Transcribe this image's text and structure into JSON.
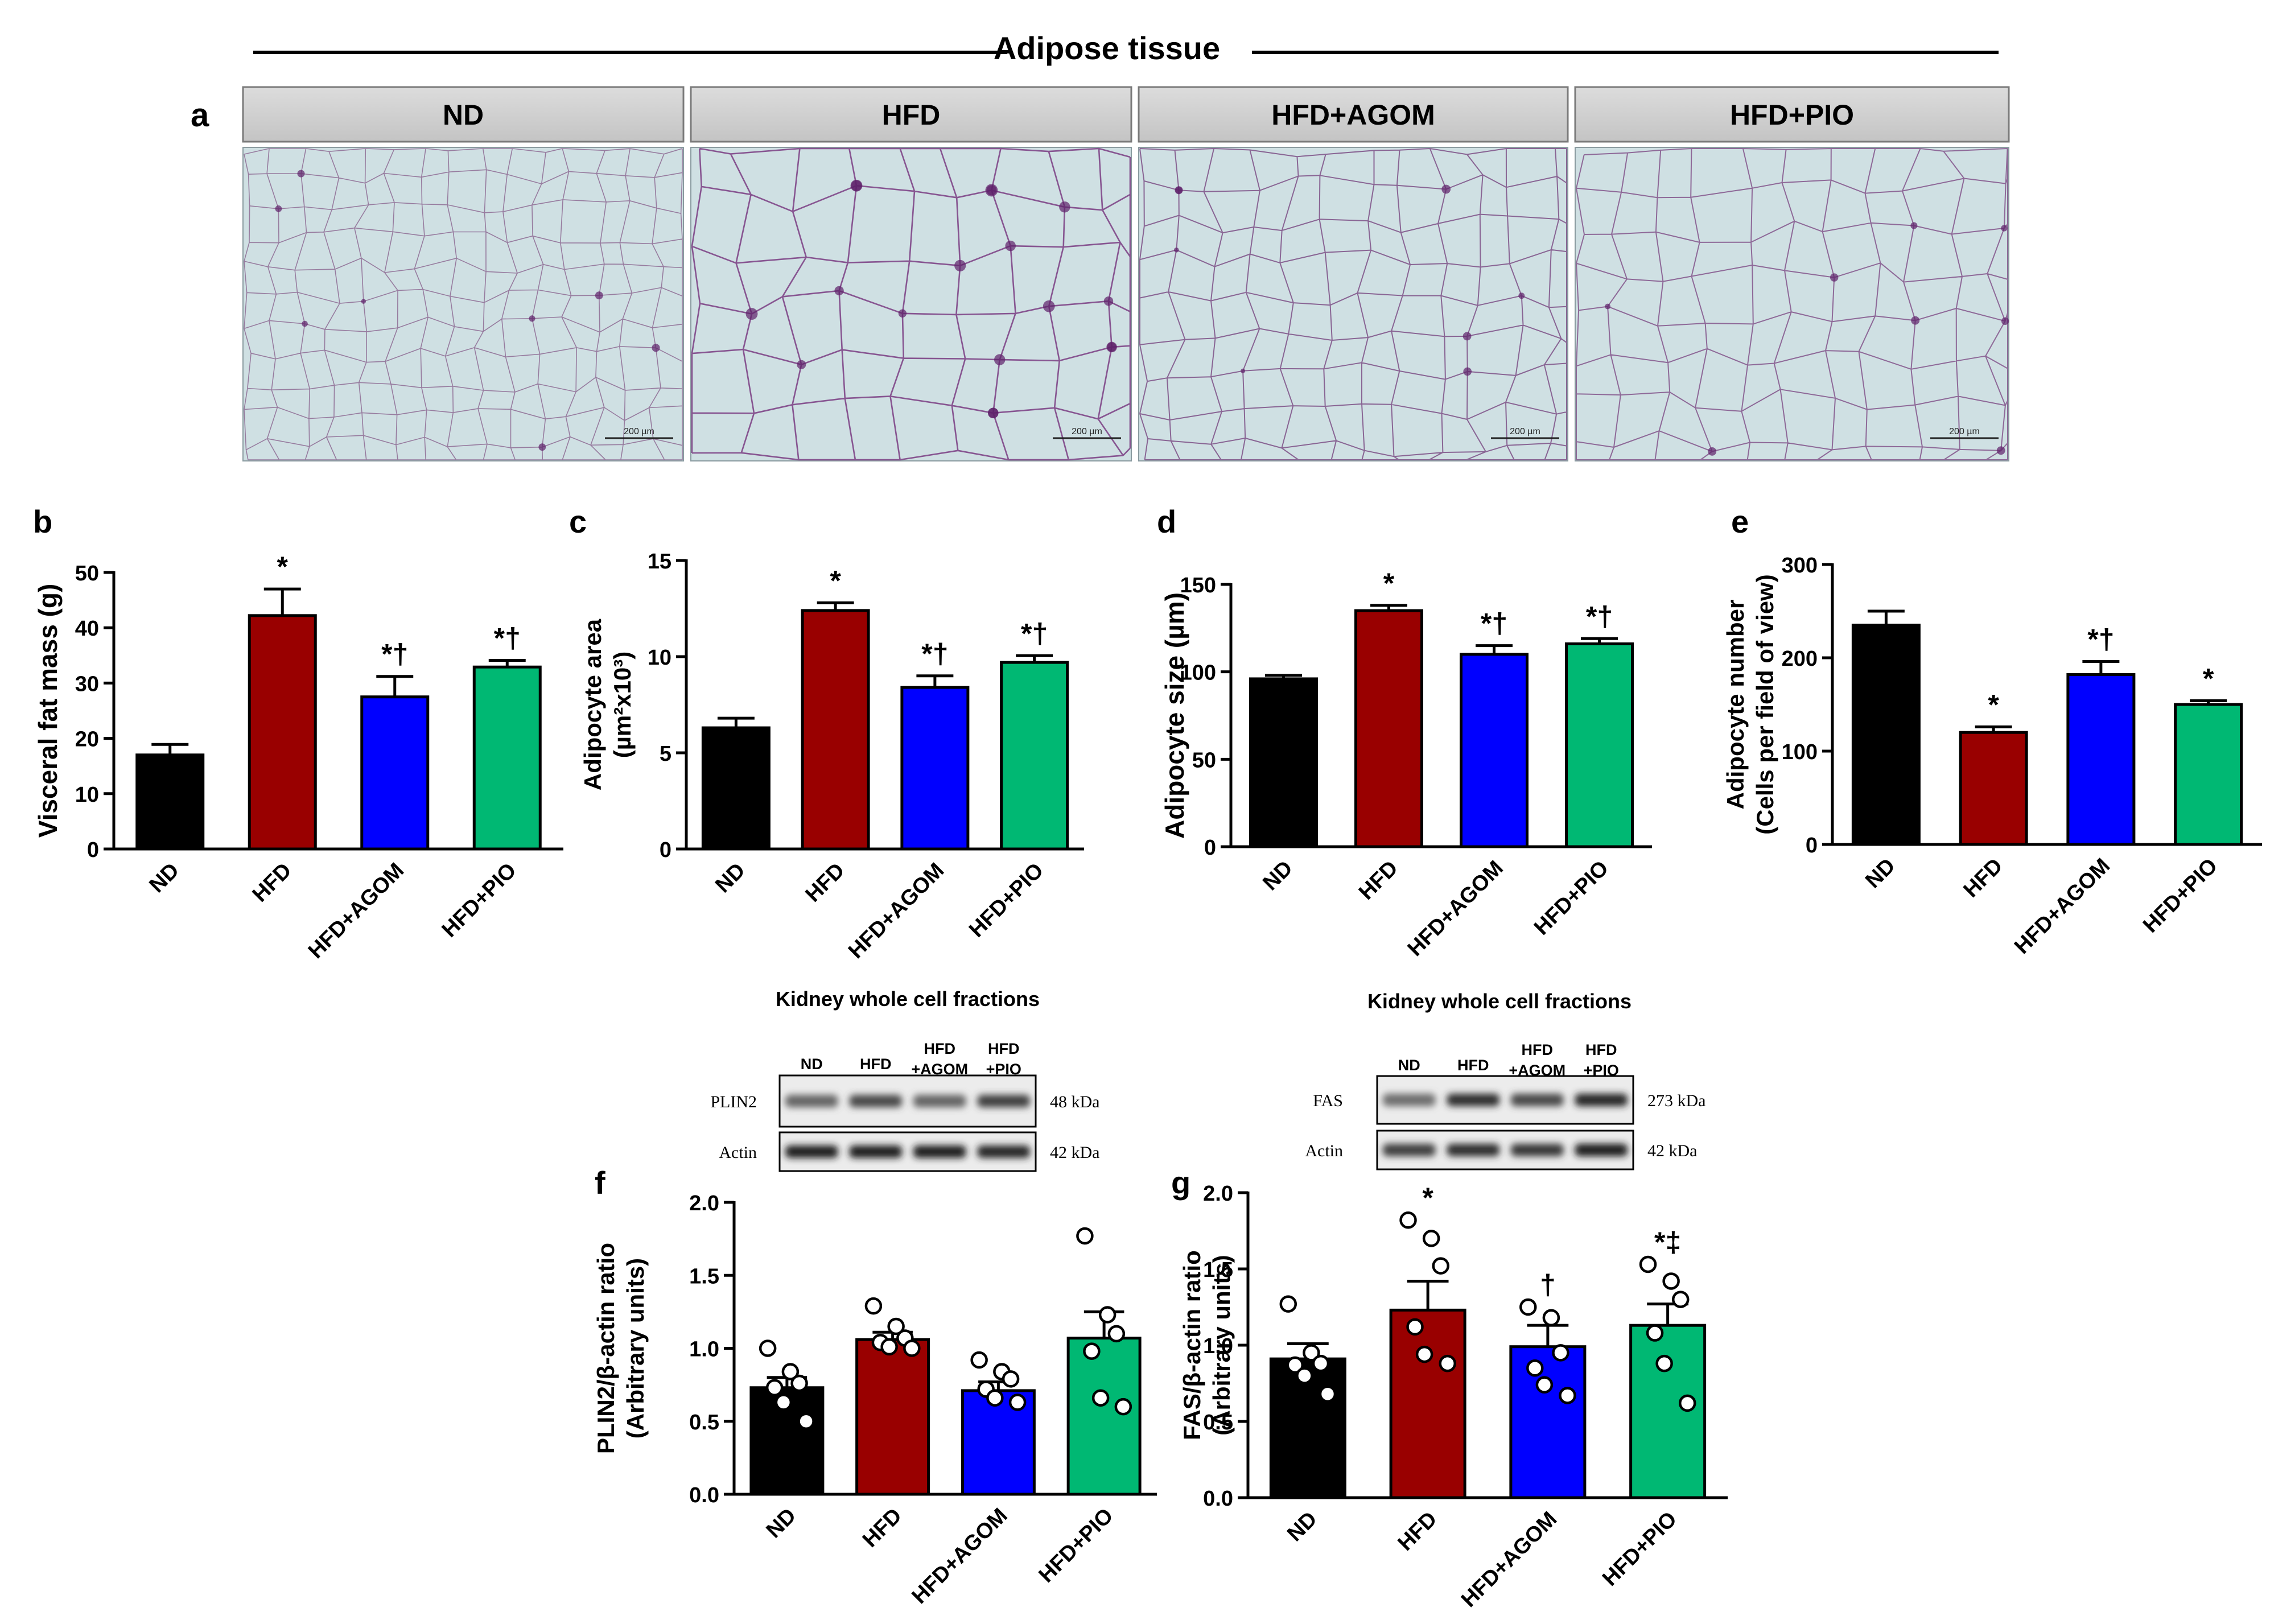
{
  "page": {
    "title": "Adipose tissue"
  },
  "panel_a": {
    "letter": "a",
    "headers": [
      "ND",
      "HFD",
      "HFD+AGOM",
      "HFD+PIO"
    ],
    "scale_bar_label": "200 µm"
  },
  "chart_data": [
    {
      "type": "bar",
      "letter": "b",
      "categories": [
        "ND",
        "HFD",
        "HFD+AGOM",
        "HFD+PIO"
      ],
      "values": [
        17,
        42.2,
        27.5,
        32.9
      ],
      "errors": [
        1.9,
        4.8,
        3.7,
        1.2
      ],
      "sig": [
        "",
        "*",
        "*†",
        "*†"
      ],
      "ylabel": [
        "Visceral fat mass (g)"
      ],
      "ylim": [
        0,
        50
      ],
      "yticks": [
        0,
        10,
        20,
        30,
        40,
        50
      ],
      "ytick_labels": [
        "0",
        "10",
        "20",
        "30",
        "40",
        "50"
      ],
      "colors": [
        "#000000",
        "#990000",
        "#0000ff",
        "#00b873"
      ]
    },
    {
      "type": "bar",
      "letter": "c",
      "categories": [
        "ND",
        "HFD",
        "HFD+AGOM",
        "HFD+PIO"
      ],
      "values": [
        6.3,
        12.4,
        8.4,
        9.7
      ],
      "errors": [
        0.5,
        0.4,
        0.6,
        0.35
      ],
      "sig": [
        "",
        "*",
        "*†",
        "*†"
      ],
      "ylabel": [
        "Adipocyte area",
        "(µm²x10³)"
      ],
      "ylim": [
        0,
        15
      ],
      "yticks": [
        0,
        5,
        10,
        15
      ],
      "ytick_labels": [
        "0",
        "5",
        "10",
        "15"
      ],
      "colors": [
        "#000000",
        "#990000",
        "#0000ff",
        "#00b873"
      ]
    },
    {
      "type": "bar",
      "letter": "d",
      "categories": [
        "ND",
        "HFD",
        "HFD+AGOM",
        "HFD+PIO"
      ],
      "values": [
        96,
        135,
        110,
        116
      ],
      "errors": [
        2,
        3,
        5,
        3
      ],
      "sig": [
        "",
        "*",
        "*†",
        "*†"
      ],
      "ylabel": [
        "Adipocyte size (µm)"
      ],
      "ylim": [
        0,
        150
      ],
      "yticks": [
        0,
        50,
        100,
        150
      ],
      "ytick_labels": [
        "0",
        "50",
        "100",
        "150"
      ],
      "colors": [
        "#000000",
        "#990000",
        "#0000ff",
        "#00b873"
      ]
    },
    {
      "type": "bar",
      "letter": "e",
      "categories": [
        "ND",
        "HFD",
        "HFD+AGOM",
        "HFD+PIO"
      ],
      "values": [
        235,
        120,
        182,
        150
      ],
      "errors": [
        15,
        6,
        14,
        4
      ],
      "sig": [
        "",
        "*",
        "*†",
        "*"
      ],
      "ylabel": [
        "Adipocyte number",
        "(Cells per field of view)"
      ],
      "ylim": [
        0,
        300
      ],
      "yticks": [
        0,
        100,
        200,
        300
      ],
      "ytick_labels": [
        "0",
        "100",
        "200",
        "300"
      ],
      "colors": [
        "#000000",
        "#990000",
        "#0000ff",
        "#00b873"
      ]
    },
    {
      "type": "bar",
      "letter": "f",
      "categories": [
        "ND",
        "HFD",
        "HFD+AGOM",
        "HFD+PIO"
      ],
      "values": [
        0.73,
        1.06,
        0.71,
        1.07
      ],
      "errors": [
        0.07,
        0.05,
        0.06,
        0.18
      ],
      "points": [
        [
          1.0,
          0.84,
          0.76,
          0.73,
          0.63,
          0.5
        ],
        [
          1.29,
          1.15,
          1.07,
          1.04,
          1.01,
          1.0
        ],
        [
          0.92,
          0.84,
          0.79,
          0.72,
          0.66,
          0.63
        ],
        [
          1.77,
          1.23,
          1.1,
          0.98,
          0.66,
          0.6
        ]
      ],
      "sig": [
        "",
        "",
        "",
        ""
      ],
      "ylabel": [
        "PLIN2/β-actin ratio",
        "(Arbitrary units)"
      ],
      "ylim": [
        0,
        2
      ],
      "yticks": [
        0,
        0.5,
        1,
        1.5,
        2
      ],
      "ytick_labels": [
        "0.0",
        "0.5",
        "1.0",
        "1.5",
        "2.0"
      ],
      "colors": [
        "#000000",
        "#990000",
        "#0000ff",
        "#00b873"
      ]
    },
    {
      "type": "bar",
      "letter": "g",
      "categories": [
        "ND",
        "HFD",
        "HFD+AGOM",
        "HFD+PIO"
      ],
      "values": [
        0.91,
        1.23,
        0.99,
        1.13
      ],
      "errors": [
        0.1,
        0.19,
        0.14,
        0.14
      ],
      "points": [
        [
          1.27,
          0.95,
          0.88,
          0.87,
          0.8,
          0.68
        ],
        [
          1.82,
          1.7,
          1.52,
          1.12,
          0.94,
          0.88
        ],
        [
          1.25,
          1.18,
          0.95,
          0.85,
          0.74,
          0.67
        ],
        [
          1.53,
          1.42,
          1.3,
          1.08,
          0.88,
          0.62
        ]
      ],
      "sig": [
        "",
        "*",
        "†",
        "*‡"
      ],
      "ylabel": [
        "FAS/β-actin ratio",
        "(Arbitrary units)"
      ],
      "ylim": [
        0,
        2
      ],
      "yticks": [
        0,
        0.5,
        1,
        1.5,
        2
      ],
      "ytick_labels": [
        "0.0",
        "0.5",
        "1.0",
        "1.5",
        "2.0"
      ],
      "colors": [
        "#000000",
        "#990000",
        "#0000ff",
        "#00b873"
      ]
    }
  ],
  "blots": [
    {
      "title": "Kidney whole cell fractions",
      "lanes": [
        [
          "ND"
        ],
        [
          "HFD"
        ],
        [
          "HFD",
          "+AGOM"
        ],
        [
          "HFD",
          "+PIO"
        ]
      ],
      "rows": [
        {
          "protein": "PLIN2",
          "kda": "48 kDa",
          "intensity": [
            0.55,
            0.7,
            0.55,
            0.75
          ]
        },
        {
          "protein": "Actin",
          "kda": "42 kDa",
          "intensity": [
            0.95,
            0.95,
            0.95,
            0.9
          ]
        }
      ]
    },
    {
      "title": "Kidney whole cell fractions",
      "lanes": [
        [
          "ND"
        ],
        [
          "HFD"
        ],
        [
          "HFD",
          "+AGOM"
        ],
        [
          "HFD",
          "+PIO"
        ]
      ],
      "rows": [
        {
          "protein": "FAS",
          "kda": "273 kDa",
          "intensity": [
            0.5,
            0.85,
            0.7,
            0.9
          ]
        },
        {
          "protein": "Actin",
          "kda": "42 kDa",
          "intensity": [
            0.75,
            0.85,
            0.8,
            0.95
          ]
        }
      ]
    }
  ]
}
